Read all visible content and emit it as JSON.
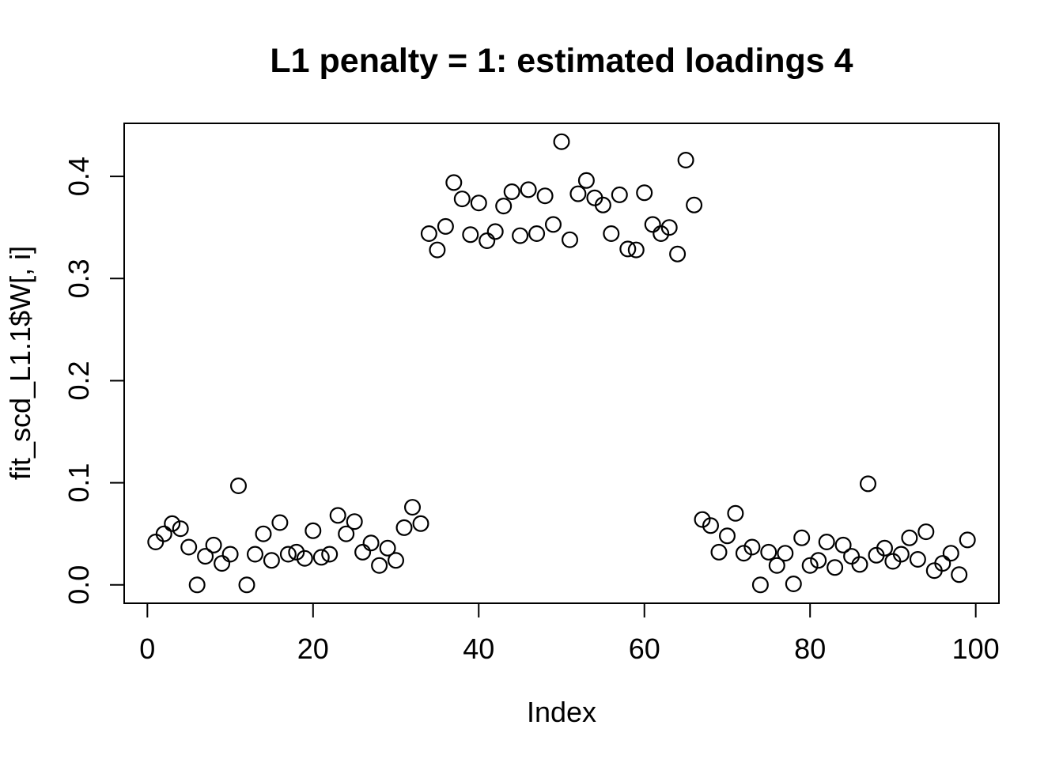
{
  "figure": {
    "background": "#ffffff",
    "foreground": "#000000"
  },
  "chart_data": {
    "type": "scatter",
    "title": "L1 penalty = 1: estimated loadings 4",
    "xlabel": "Index",
    "ylabel": "fit_scd_L1.1$W[, i]",
    "point_marker": "open-circle",
    "point_color": "#000000",
    "grid": false,
    "legend": null,
    "xlim": [
      -2.8,
      102.8
    ],
    "ylim": [
      -0.018,
      0.452
    ],
    "xticks": [
      "0",
      "20",
      "40",
      "60",
      "80",
      "100"
    ],
    "yticks": [
      "0.0",
      "0.1",
      "0.2",
      "0.3",
      "0.4"
    ],
    "x": [
      1,
      2,
      3,
      4,
      5,
      6,
      7,
      8,
      9,
      10,
      11,
      12,
      13,
      14,
      15,
      16,
      17,
      18,
      19,
      20,
      21,
      22,
      23,
      24,
      25,
      26,
      27,
      28,
      29,
      30,
      31,
      32,
      33,
      34,
      35,
      36,
      37,
      38,
      39,
      40,
      41,
      42,
      43,
      44,
      45,
      46,
      47,
      48,
      49,
      50,
      51,
      52,
      53,
      54,
      55,
      56,
      57,
      58,
      59,
      60,
      61,
      62,
      63,
      64,
      65,
      66,
      67,
      68,
      69,
      70,
      71,
      72,
      73,
      74,
      75,
      76,
      77,
      78,
      79,
      80,
      81,
      82,
      83,
      84,
      85,
      86,
      87,
      88,
      89,
      90,
      91,
      92,
      93,
      94,
      95,
      96,
      97,
      98,
      99
    ],
    "y": [
      0.042,
      0.05,
      0.06,
      0.055,
      0.037,
      0.0,
      0.028,
      0.039,
      0.021,
      0.03,
      0.097,
      0.0,
      0.03,
      0.05,
      0.024,
      0.061,
      0.03,
      0.032,
      0.026,
      0.053,
      0.027,
      0.03,
      0.068,
      0.05,
      0.062,
      0.032,
      0.041,
      0.019,
      0.036,
      0.024,
      0.056,
      0.076,
      0.06,
      0.344,
      0.328,
      0.351,
      0.394,
      0.378,
      0.343,
      0.374,
      0.337,
      0.346,
      0.371,
      0.385,
      0.342,
      0.387,
      0.344,
      0.381,
      0.353,
      0.434,
      0.338,
      0.383,
      0.396,
      0.379,
      0.372,
      0.344,
      0.382,
      0.329,
      0.328,
      0.384,
      0.353,
      0.344,
      0.35,
      0.324,
      0.416,
      0.372,
      0.064,
      0.058,
      0.032,
      0.048,
      0.07,
      0.031,
      0.037,
      0.0,
      0.032,
      0.019,
      0.031,
      0.001,
      0.046,
      0.019,
      0.024,
      0.042,
      0.017,
      0.039,
      0.028,
      0.02,
      0.099,
      0.029,
      0.036,
      0.023,
      0.03,
      0.046,
      0.025,
      0.052,
      0.014,
      0.021,
      0.031,
      0.01,
      0.044
    ]
  }
}
